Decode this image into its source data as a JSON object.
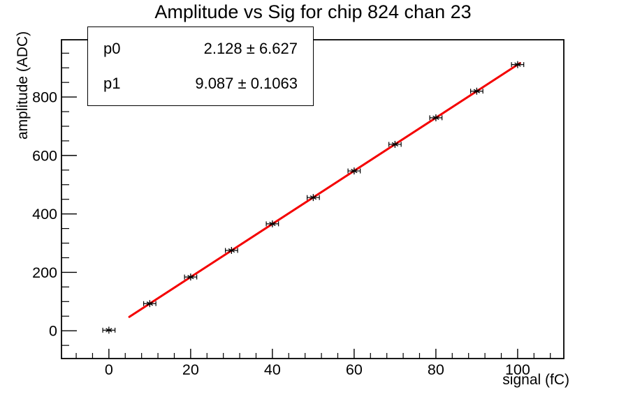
{
  "title": "Amplitude vs Sig for chip 824 chan 23",
  "stats_box": {
    "rows": [
      {
        "name": "p0",
        "value": "2.128 ± 6.627"
      },
      {
        "name": "p1",
        "value": "9.087 ± 0.1063"
      }
    ]
  },
  "chart_data": {
    "type": "scatter",
    "title": "Amplitude vs Sig for chip 824 chan 23",
    "xlabel": "signal (fC)",
    "ylabel": "amplitude (ADC)",
    "x": [
      0,
      10,
      20,
      30,
      40,
      50,
      60,
      70,
      80,
      90,
      100
    ],
    "y": [
      2,
      93,
      184,
      275,
      366,
      456,
      547,
      638,
      729,
      820,
      911
    ],
    "x_error": 1.5,
    "marker": "asterisk",
    "xlim": [
      -11.6,
      111.3
    ],
    "ylim": [
      -95,
      996
    ],
    "x_major_ticks": [
      0,
      20,
      40,
      60,
      80,
      100
    ],
    "x_major_step": 20,
    "x_minor_step": 4,
    "y_major_ticks": [
      0,
      200,
      400,
      600,
      800
    ],
    "y_major_step": 200,
    "y_minor_step": 50,
    "grid": false,
    "legend": "none",
    "fit": {
      "type": "linear",
      "p0": 2.128,
      "p1": 9.087,
      "x_start": 5,
      "x_end": 100.6,
      "color": "#f40000",
      "line_width": 3
    },
    "colors": {
      "axis": "#000000",
      "marker": "#000000",
      "background": "#ffffff",
      "fit_line": "#f40000"
    }
  }
}
